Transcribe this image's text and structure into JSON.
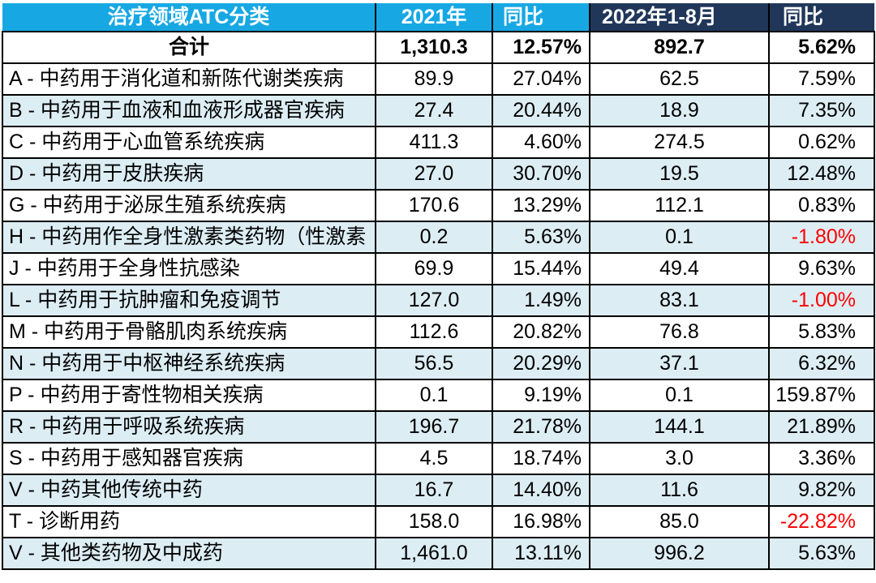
{
  "colors": {
    "header_cyan": "#17A8E4",
    "header_navy": "#20375A",
    "alt_row_blue": "#DDEDF4",
    "negative_red": "#FF0000",
    "border_black": "#000000"
  },
  "header": {
    "category": "治疗领域ATC分类",
    "year_2021": "2021年",
    "yoy_2021": "同比",
    "period_2022": "2022年1-8月",
    "yoy_2022": "同比"
  },
  "chart_data": {
    "type": "table",
    "columns": [
      "治疗领域ATC分类",
      "2021年",
      "同比",
      "2022年1-8月",
      "同比"
    ],
    "rows": [
      {
        "category": "合计",
        "v2021": "1,310.3",
        "yoy_2021": "12.57%",
        "v2022": "892.7",
        "yoy_2022": "5.62%",
        "total": true
      },
      {
        "category": "A - 中药用于消化道和新陈代谢类疾病",
        "v2021": "89.9",
        "yoy_2021": "27.04%",
        "v2022": "62.5",
        "yoy_2022": "7.59%"
      },
      {
        "category": "B - 中药用于血液和血液形成器官疾病",
        "v2021": "27.4",
        "yoy_2021": "20.44%",
        "v2022": "18.9",
        "yoy_2022": "7.35%"
      },
      {
        "category": "C - 中药用于心血管系统疾病",
        "v2021": "411.3",
        "yoy_2021": "4.60%",
        "v2022": "274.5",
        "yoy_2022": "0.62%"
      },
      {
        "category": "D - 中药用于皮肤疾病",
        "v2021": "27.0",
        "yoy_2021": "30.70%",
        "v2022": "19.5",
        "yoy_2022": "12.48%"
      },
      {
        "category": "G - 中药用于泌尿生殖系统疾病",
        "v2021": "170.6",
        "yoy_2021": "13.29%",
        "v2022": "112.1",
        "yoy_2022": "0.83%"
      },
      {
        "category": "H - 中药用作全身性激素类药物（性激素",
        "v2021": "0.2",
        "yoy_2021": "5.63%",
        "v2022": "0.1",
        "yoy_2022": "-1.80%"
      },
      {
        "category": "J - 中药用于全身性抗感染",
        "v2021": "69.9",
        "yoy_2021": "15.44%",
        "v2022": "49.4",
        "yoy_2022": "9.63%"
      },
      {
        "category": "L - 中药用于抗肿瘤和免疫调节",
        "v2021": "127.0",
        "yoy_2021": "1.49%",
        "v2022": "83.1",
        "yoy_2022": "-1.00%"
      },
      {
        "category": "M - 中药用于骨骼肌肉系统疾病",
        "v2021": "112.6",
        "yoy_2021": "20.82%",
        "v2022": "76.8",
        "yoy_2022": "5.83%"
      },
      {
        "category": "N - 中药用于中枢神经系统疾病",
        "v2021": "56.5",
        "yoy_2021": "20.29%",
        "v2022": "37.1",
        "yoy_2022": "6.32%"
      },
      {
        "category": "P - 中药用于寄性物相关疾病",
        "v2021": "0.1",
        "yoy_2021": "9.19%",
        "v2022": "0.1",
        "yoy_2022": "159.87%"
      },
      {
        "category": "R - 中药用于呼吸系统疾病",
        "v2021": "196.7",
        "yoy_2021": "21.78%",
        "v2022": "144.1",
        "yoy_2022": "21.89%"
      },
      {
        "category": "S - 中药用于感知器官疾病",
        "v2021": "4.5",
        "yoy_2021": "18.74%",
        "v2022": "3.0",
        "yoy_2022": "3.36%"
      },
      {
        "category": "V - 中药其他传统中药",
        "v2021": "16.7",
        "yoy_2021": "14.40%",
        "v2022": "11.6",
        "yoy_2022": "9.82%"
      },
      {
        "category": "T - 诊断用药",
        "v2021": "158.0",
        "yoy_2021": "16.98%",
        "v2022": "85.0",
        "yoy_2022": "-22.82%"
      },
      {
        "category": "V - 其他类药物及中成药",
        "v2021": "1,461.0",
        "yoy_2021": "13.11%",
        "v2022": "996.2",
        "yoy_2022": "5.63%"
      }
    ]
  }
}
